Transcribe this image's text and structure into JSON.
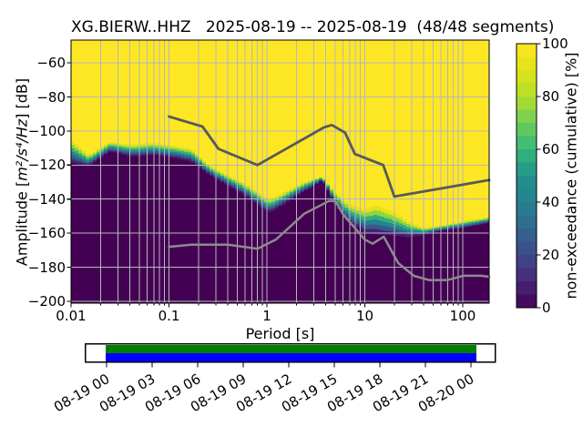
{
  "title": "XG.BIERW..HHZ   2025-08-19 -- 2025-08-19  (48/48 segments)",
  "chart_data": {
    "type": "heatmap",
    "title": "XG.BIERW..HHZ   2025-08-19 -- 2025-08-19  (48/48 segments)",
    "xlabel": "Period [s]",
    "ylabel": "Amplitude [m²/s⁴/Hz] [dB]",
    "ylabel_parts": {
      "prefix": "Amplitude [",
      "math": "m²/s⁴/Hz",
      "suffix": "] [dB]"
    },
    "x_scale": "log",
    "xlim": [
      0.01,
      186
    ],
    "ylim": [
      -201.1,
      -46.6
    ],
    "grid": "both",
    "grid_color": "#b6b6be",
    "x_ticks": {
      "values": [
        0.01,
        0.1,
        1,
        10,
        100
      ],
      "labels": [
        "0.01",
        "0.1",
        "1",
        "10",
        "100"
      ]
    },
    "y_ticks": {
      "values": [
        -60,
        -80,
        -100,
        -120,
        -140,
        -160,
        -180,
        -200
      ],
      "labels": [
        "−60",
        "−80",
        "−100",
        "−120",
        "−140",
        "−160",
        "−180",
        "−200"
      ]
    },
    "colorbar": {
      "label": "non-exceedance (cumulative) [%]",
      "min": 0,
      "max": 100,
      "steps": 20,
      "ticks": [
        0,
        20,
        40,
        60,
        80,
        100
      ],
      "tick_labels": [
        "0",
        "20",
        "40",
        "60",
        "80",
        "100"
      ],
      "cmap": "viridis",
      "viridis_anchors": [
        [
          0.0,
          "#440154"
        ],
        [
          0.1,
          "#482878"
        ],
        [
          0.2,
          "#3e4989"
        ],
        [
          0.3,
          "#31688e"
        ],
        [
          0.4,
          "#26828e"
        ],
        [
          0.5,
          "#21918c"
        ],
        [
          0.6,
          "#35b779"
        ],
        [
          0.7,
          "#6dcd59"
        ],
        [
          0.8,
          "#b5de2b"
        ],
        [
          0.9,
          "#dfe318"
        ],
        [
          1.0,
          "#fde725"
        ]
      ]
    },
    "non_exceedance_band": {
      "description": "PPSD cumulative distribution: dB level where non-exceedance reaches 100% (top of color transition) and 0% (top of dark region), vs period in seconds",
      "periods_s": [
        0.01,
        0.015,
        0.025,
        0.042,
        0.07,
        0.117,
        0.17,
        0.255,
        0.4,
        0.61,
        0.95,
        1.1,
        1.5,
        2.3,
        3.0,
        3.7,
        4.9,
        6.8,
        8.0,
        10.0,
        13.0,
        20.0,
        28.0,
        40.0,
        60.0,
        100.0,
        186.0
      ],
      "db_at_100pct": [
        -105,
        -114,
        -106.5,
        -108,
        -107,
        -108.7,
        -110.5,
        -120,
        -126,
        -131,
        -139,
        -140,
        -136,
        -130.5,
        -128,
        -126.5,
        -135.5,
        -142.7,
        -144.5,
        -146,
        -143.5,
        -148,
        -153.3,
        -157,
        -155.5,
        -153,
        -150.5
      ],
      "db_at_0pct": [
        -118.5,
        -120.7,
        -112,
        -115,
        -114,
        -116,
        -118,
        -125.5,
        -132,
        -138,
        -146.5,
        -147.5,
        -143,
        -136,
        -132.5,
        -128.8,
        -142.7,
        -153.4,
        -156,
        -159.6,
        -160.5,
        -161.4,
        -162.3,
        -161,
        -158.6,
        -157,
        -154
      ]
    },
    "noise_models": {
      "nhnm": {
        "name": "Peterson New High Noise Model",
        "color": "#595959",
        "periods_s": [
          0.1,
          0.22,
          0.32,
          0.8,
          3.8,
          4.6,
          6.3,
          7.9,
          15.4,
          20.0,
          186.0
        ],
        "db": [
          -91.5,
          -97.4,
          -110.5,
          -120.0,
          -98.0,
          -96.5,
          -101.0,
          -113.5,
          -120.0,
          -138.5,
          -128.8
        ]
      },
      "nlnm": {
        "name": "Peterson New Low Noise Model",
        "color": "#8c8c8c",
        "periods_s": [
          0.1,
          0.17,
          0.4,
          0.8,
          1.24,
          2.4,
          4.3,
          5.0,
          6.0,
          10.0,
          12.0,
          15.6,
          21.9,
          31.6,
          45.0,
          70.0,
          101.0,
          154.0,
          186.0
        ],
        "db": [
          -168.0,
          -166.7,
          -166.7,
          -169.2,
          -163.7,
          -148.6,
          -141.1,
          -141.1,
          -149.0,
          -163.8,
          -166.2,
          -162.1,
          -177.5,
          -185.0,
          -187.5,
          -187.5,
          -185.0,
          -185.0,
          -185.6
        ]
      }
    },
    "colors": {
      "bg_100pct": "#fde725",
      "bg_0pct": "#440154",
      "bands": [
        "#e4e31a",
        "#91d542",
        "#32b07c",
        "#25858e",
        "#38598b",
        "#472272"
      ]
    }
  },
  "timeline": {
    "tick_labels": [
      "08-19 00",
      "08-19 03",
      "08-19 06",
      "08-19 09",
      "08-19 12",
      "08-19 15",
      "08-19 18",
      "08-19 21",
      "08-20 00"
    ],
    "coverage_bar_top_color": "#008000",
    "coverage_bar_bottom_color": "#0000ff",
    "box_border_color": "#000000"
  }
}
